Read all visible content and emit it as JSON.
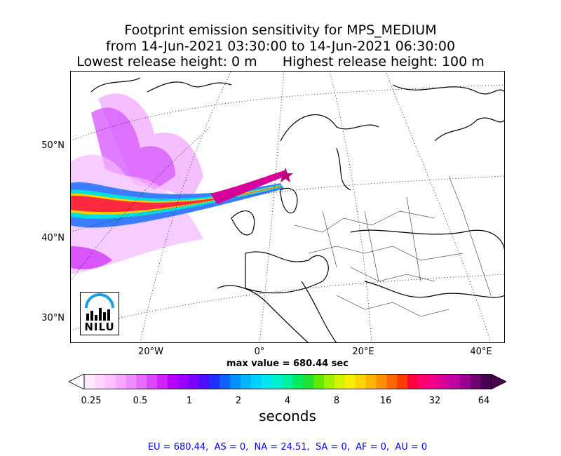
{
  "title": {
    "line1": "Footprint emission sensitivity for MPS_MEDIUM",
    "line2": "from 14-Jun-2021 03:30:00 to 14-Jun-2021 06:30:00",
    "line3": "Lowest release height: 0 m      Highest release height: 100 m"
  },
  "map": {
    "lat_labels": [
      "50°N",
      "40°N",
      "30°N"
    ],
    "lon_labels": [
      "20°W",
      "0°",
      "20°E",
      "40°E"
    ],
    "max_value": "max value = 680.44 sec",
    "logo_text": "NILU",
    "colors": {
      "coast": "#000000",
      "grid": "#000000",
      "release_marker": "#c0007a"
    }
  },
  "colorbar": {
    "ticks": [
      "0.25",
      "0.5",
      "1",
      "2",
      "4",
      "8",
      "16",
      "32",
      "64"
    ],
    "label": "seconds",
    "colors": [
      "#ffeaff",
      "#ffd6ff",
      "#ffc2ff",
      "#f7a8ff",
      "#ef8cff",
      "#e66cff",
      "#dc46ff",
      "#cf22ff",
      "#b800ff",
      "#9a00ff",
      "#7a00ff",
      "#4a10ff",
      "#2030ff",
      "#1060ff",
      "#0090ff",
      "#00b4ff",
      "#00d0ff",
      "#00e6f0",
      "#00f0d0",
      "#00f2a0",
      "#00ec60",
      "#20e030",
      "#60e800",
      "#a0f000",
      "#d4f400",
      "#f8f000",
      "#ffd400",
      "#ffb400",
      "#ff9000",
      "#ff6800",
      "#ff3c00",
      "#ff0040",
      "#ff0070",
      "#f0008a",
      "#d8009a",
      "#c000a0",
      "#9c0090",
      "#700070",
      "#4a0050"
    ]
  },
  "summary": "EU = 680.44,  AS = 0,  NA = 24.51,  SA = 0,  AF = 0,  AU = 0"
}
